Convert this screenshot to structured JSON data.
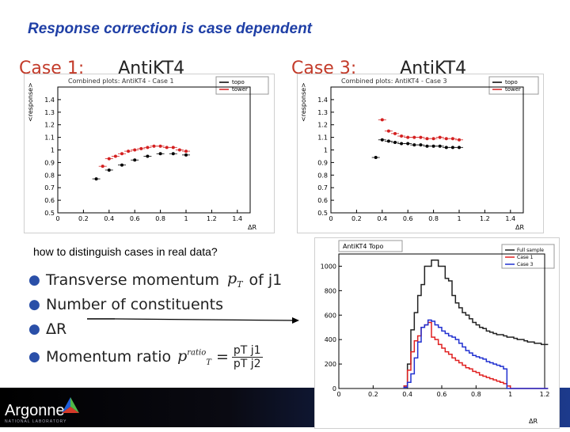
{
  "slide": {
    "title": "Response correction is case dependent"
  },
  "case1": {
    "header_label": "Case 1:",
    "header_alg": "AntiKT4",
    "plot_title": "Combined plots: AntiKT4 - Case 1",
    "ylabel": "<response>",
    "xlabel": "ΔR",
    "legend": [
      "topo",
      "tower"
    ],
    "yticks": [
      "0.5",
      "0.6",
      "0.7",
      "0.8",
      "0.9",
      "1",
      "1.1",
      "1.2",
      "1.3",
      "1.4"
    ],
    "xticks": [
      "0",
      "0.2",
      "0.4",
      "0.6",
      "0.8",
      "1",
      "1.2",
      "1.4"
    ]
  },
  "case3": {
    "header_label": "Case 3:",
    "header_alg": "AntiKT4",
    "plot_title": "Combined plots: AntiKT4 - Case 3",
    "ylabel": "<response>",
    "xlabel": "ΔR",
    "legend": [
      "topo",
      "tower"
    ],
    "yticks": [
      "0.5",
      "0.6",
      "0.7",
      "0.8",
      "0.9",
      "1",
      "1.1",
      "1.2",
      "1.3",
      "1.4"
    ],
    "xticks": [
      "0",
      "0.2",
      "0.4",
      "0.6",
      "0.8",
      "1",
      "1.2",
      "1.4"
    ]
  },
  "hist": {
    "title": "AntiKT4 Topo",
    "xlabel": "ΔR",
    "legend": [
      "Full sample",
      "Case 1",
      "Case 3"
    ],
    "yticks": [
      "0",
      "200",
      "400",
      "600",
      "800",
      "1000"
    ],
    "xticks": [
      "0",
      "0.2",
      "0.4",
      "0.6",
      "0.8",
      "1",
      "1.2"
    ]
  },
  "question": "how to distinguish cases in real data?",
  "bullets": {
    "b1_text": "Transverse momentum",
    "b1_var": "p",
    "b1_sub": "T",
    "b1_tail": "of j1",
    "b2_text": "Number of constituents",
    "b3_text": "ΔR",
    "b4_text": "Momentum ratio",
    "b4_var": "p",
    "b4_sup": "ratio",
    "b4_sub": "T",
    "b4_eq": "=",
    "b4_num": "pT j1",
    "b4_den": "pT j2"
  },
  "footer": {
    "logo_text": "Argonne",
    "logo_sub": "NATIONAL LABORATORY"
  },
  "colors": {
    "title": "#1f3fa6",
    "case_text": "#c33b2a",
    "topo": "#000000",
    "tower": "#d42020",
    "full": "#222222",
    "c1": "#e02020",
    "c3": "#2030d0"
  },
  "chart_data": [
    {
      "type": "scatter",
      "title": "Combined plots: AntiKT4 - Case 1",
      "xlabel": "ΔR",
      "ylabel": "<response>",
      "xlim": [
        0,
        1.5
      ],
      "ylim": [
        0.5,
        1.5
      ],
      "series": [
        {
          "name": "topo",
          "x": [
            0.3,
            0.4,
            0.5,
            0.6,
            0.7,
            0.8,
            0.9,
            1.0
          ],
          "values": [
            0.77,
            0.84,
            0.88,
            0.92,
            0.95,
            0.97,
            0.97,
            0.96
          ]
        },
        {
          "name": "tower",
          "x": [
            0.35,
            0.4,
            0.45,
            0.5,
            0.55,
            0.6,
            0.65,
            0.7,
            0.75,
            0.8,
            0.85,
            0.9,
            0.95,
            1.0
          ],
          "values": [
            0.87,
            0.93,
            0.95,
            0.97,
            0.99,
            1.0,
            1.01,
            1.02,
            1.03,
            1.03,
            1.02,
            1.02,
            1.0,
            0.99
          ]
        }
      ]
    },
    {
      "type": "scatter",
      "title": "Combined plots: AntiKT4 - Case 3",
      "xlabel": "ΔR",
      "ylabel": "<response>",
      "xlim": [
        0,
        1.5
      ],
      "ylim": [
        0.5,
        1.5
      ],
      "series": [
        {
          "name": "topo",
          "x": [
            0.35,
            0.4,
            0.45,
            0.5,
            0.55,
            0.6,
            0.65,
            0.7,
            0.75,
            0.8,
            0.85,
            0.9,
            0.95,
            1.0
          ],
          "values": [
            0.94,
            1.08,
            1.07,
            1.06,
            1.05,
            1.05,
            1.04,
            1.04,
            1.03,
            1.03,
            1.03,
            1.02,
            1.02,
            1.02
          ]
        },
        {
          "name": "tower",
          "x": [
            0.4,
            0.45,
            0.5,
            0.55,
            0.6,
            0.65,
            0.7,
            0.75,
            0.8,
            0.85,
            0.9,
            0.95,
            1.0
          ],
          "values": [
            1.24,
            1.15,
            1.13,
            1.11,
            1.1,
            1.1,
            1.1,
            1.09,
            1.09,
            1.1,
            1.09,
            1.09,
            1.08
          ]
        }
      ]
    },
    {
      "type": "line",
      "title": "AntiKT4 Topo",
      "xlabel": "ΔR",
      "xlim": [
        0,
        1.2
      ],
      "ylim": [
        0,
        1100
      ],
      "x": [
        0.38,
        0.4,
        0.42,
        0.44,
        0.46,
        0.48,
        0.5,
        0.52,
        0.54,
        0.56,
        0.58,
        0.6,
        0.62,
        0.64,
        0.66,
        0.68,
        0.7,
        0.72,
        0.74,
        0.76,
        0.78,
        0.8,
        0.82,
        0.84,
        0.86,
        0.88,
        0.9,
        0.92,
        0.94,
        0.96,
        0.98,
        1.0,
        1.02,
        1.04,
        1.06,
        1.08,
        1.1,
        1.12,
        1.14,
        1.16,
        1.18,
        1.2
      ],
      "series": [
        {
          "name": "Full sample",
          "values": [
            20,
            200,
            480,
            620,
            760,
            850,
            1000,
            1000,
            1050,
            1050,
            1000,
            1000,
            900,
            880,
            760,
            700,
            660,
            620,
            600,
            570,
            540,
            520,
            500,
            490,
            470,
            460,
            450,
            440,
            440,
            430,
            420,
            420,
            410,
            400,
            400,
            390,
            380,
            380,
            370,
            370,
            360,
            360
          ]
        },
        {
          "name": "Case 1",
          "values": [
            20,
            150,
            300,
            390,
            430,
            500,
            520,
            540,
            420,
            400,
            360,
            330,
            300,
            280,
            250,
            230,
            210,
            190,
            170,
            160,
            140,
            130,
            110,
            100,
            90,
            80,
            70,
            60,
            50,
            40,
            20,
            0,
            0,
            0,
            0,
            0,
            0,
            0,
            0,
            0,
            0,
            0
          ]
        },
        {
          "name": "Case 3",
          "values": [
            10,
            50,
            120,
            250,
            380,
            500,
            520,
            560,
            550,
            520,
            500,
            470,
            450,
            430,
            420,
            400,
            370,
            340,
            310,
            290,
            270,
            260,
            250,
            240,
            220,
            210,
            200,
            190,
            180,
            160,
            0,
            0,
            0,
            0,
            0,
            0,
            0,
            0,
            0,
            0,
            0,
            0
          ]
        }
      ]
    }
  ]
}
